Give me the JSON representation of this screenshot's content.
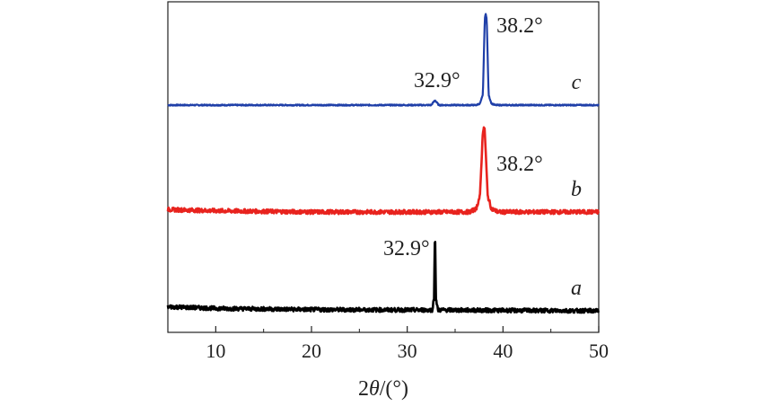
{
  "chart_data": {
    "type": "line",
    "title": "",
    "xlabel_parts": [
      "2",
      "θ",
      "/(°)"
    ],
    "ylabel": "",
    "xlim": [
      5,
      50
    ],
    "xticks": [
      10,
      20,
      30,
      40,
      50
    ],
    "grid": false,
    "legend": "none",
    "series": [
      {
        "name": "c",
        "color": "#1f3fa8",
        "baseline": 0.0,
        "points": [
          [
            5,
            0.0
          ],
          [
            32.5,
            0.0
          ],
          [
            32.9,
            0.12
          ],
          [
            33.3,
            0.0
          ],
          [
            37.2,
            0.0
          ],
          [
            37.6,
            0.04
          ],
          [
            37.9,
            0.25
          ],
          [
            38.1,
            2.15
          ],
          [
            38.2,
            2.25
          ],
          [
            38.3,
            2.15
          ],
          [
            38.5,
            0.25
          ],
          [
            38.8,
            0.04
          ],
          [
            39.2,
            0.0
          ],
          [
            50,
            0.0
          ]
        ],
        "annotations": [
          {
            "x": 32.9,
            "text": "32.9°"
          },
          {
            "x": 38.2,
            "text": "38.2°"
          }
        ]
      },
      {
        "name": "b",
        "color": "#e8231e",
        "baseline": 0.0,
        "points": [
          [
            5,
            0.06
          ],
          [
            10,
            0.03
          ],
          [
            20,
            0.0
          ],
          [
            30,
            0.0
          ],
          [
            36.5,
            0.0
          ],
          [
            37.2,
            0.08
          ],
          [
            37.6,
            0.4
          ],
          [
            37.9,
            2.0
          ],
          [
            38.0,
            2.1
          ],
          [
            38.1,
            2.0
          ],
          [
            38.4,
            0.4
          ],
          [
            38.8,
            0.08
          ],
          [
            39.5,
            0.0
          ],
          [
            50,
            0.0
          ]
        ],
        "annotations": [
          {
            "x": 38.2,
            "text": "38.2°"
          }
        ]
      },
      {
        "name": "a",
        "color": "#000000",
        "baseline": 0.0,
        "points": [
          [
            5,
            0.1
          ],
          [
            10,
            0.06
          ],
          [
            20,
            0.03
          ],
          [
            30,
            0.02
          ],
          [
            32.6,
            0.02
          ],
          [
            32.8,
            0.3
          ],
          [
            32.9,
            2.05
          ],
          [
            33.0,
            0.3
          ],
          [
            33.2,
            0.02
          ],
          [
            40,
            0.01
          ],
          [
            50,
            0.0
          ]
        ],
        "annotations": [
          {
            "x": 32.9,
            "text": "32.9°"
          }
        ]
      }
    ]
  }
}
